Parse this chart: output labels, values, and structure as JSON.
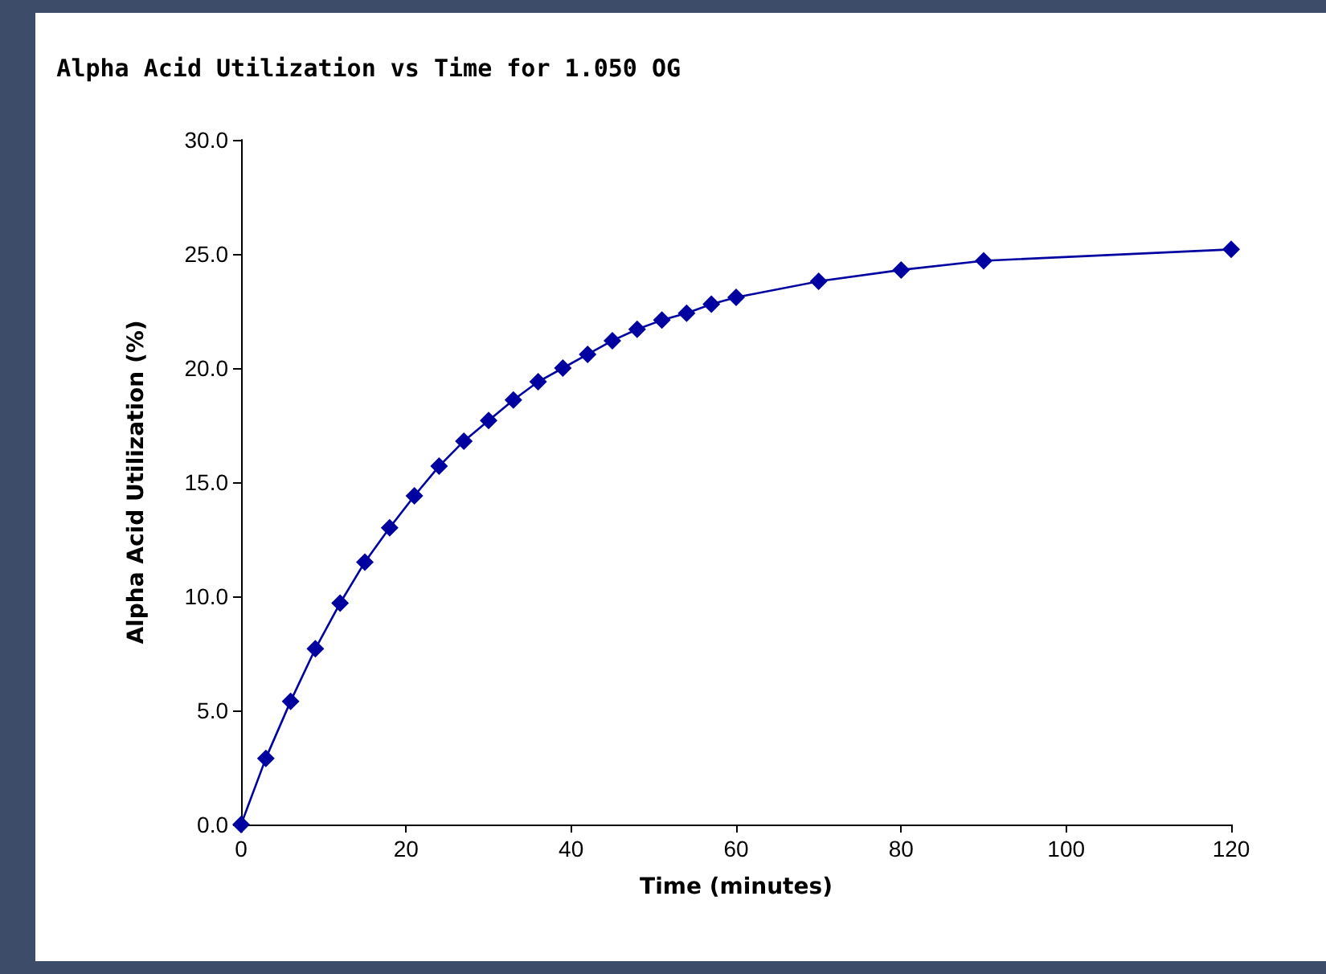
{
  "chart_data": {
    "type": "line",
    "title": "Alpha Acid Utilization vs Time for 1.050 OG",
    "xlabel": "Time (minutes)",
    "ylabel": "Alpha Acid Utilization (%)",
    "x": [
      0,
      3,
      6,
      9,
      12,
      15,
      18,
      21,
      24,
      27,
      30,
      33,
      36,
      39,
      42,
      45,
      48,
      51,
      54,
      57,
      60,
      70,
      80,
      90,
      120
    ],
    "series": [
      {
        "color": "#0000a0",
        "values": [
          0,
          2.9,
          5.4,
          7.7,
          9.7,
          11.5,
          13.0,
          14.4,
          15.7,
          16.8,
          17.7,
          18.6,
          19.4,
          20.0,
          20.6,
          21.2,
          21.7,
          22.1,
          22.4,
          22.8,
          23.1,
          23.8,
          24.3,
          24.7,
          25.2
        ]
      }
    ],
    "xlim": [
      0,
      120
    ],
    "xticks": [
      0,
      20,
      40,
      60,
      80,
      100,
      120
    ],
    "ylim": [
      0,
      30
    ],
    "yticks": [
      {
        "value": 0,
        "label": "0.0"
      },
      {
        "value": 5,
        "label": "5.0"
      },
      {
        "value": 10,
        "label": "10.0"
      },
      {
        "value": 15,
        "label": "15.0"
      },
      {
        "value": 20,
        "label": "20.0"
      },
      {
        "value": 25,
        "label": "25.0"
      },
      {
        "value": 30,
        "label": "30.0"
      }
    ],
    "grid": false,
    "marker": "diamond",
    "line_style": "solid"
  }
}
